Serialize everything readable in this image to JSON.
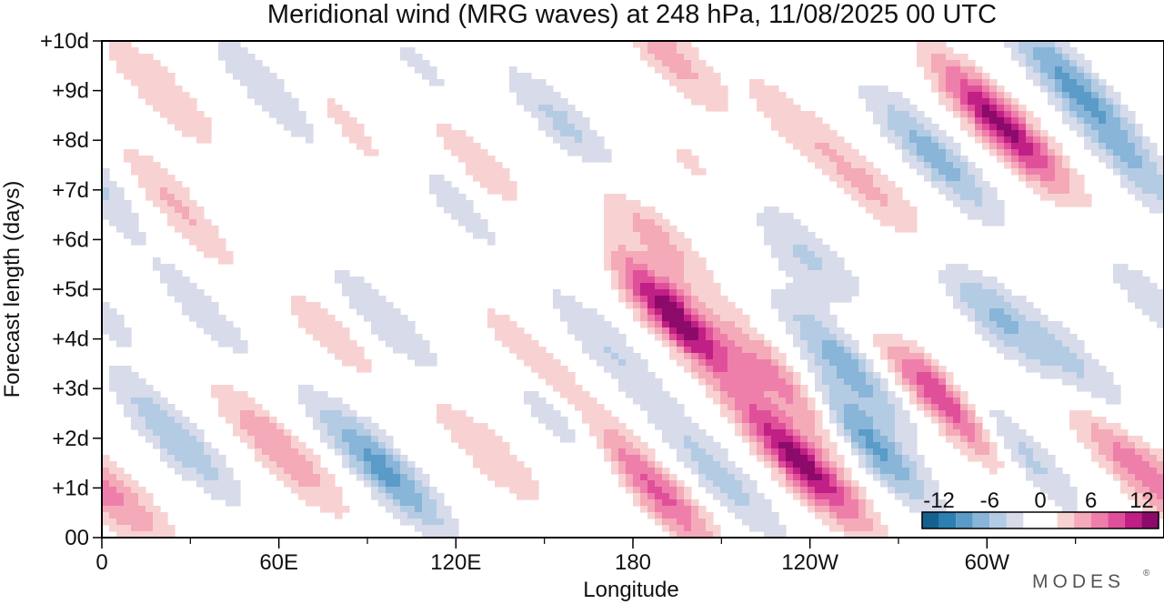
{
  "chart_data": {
    "type": "heatmap",
    "title": "Meridional wind (MRG waves) at  248 hPa,  11/08/2025  00 UTC",
    "xlabel": "Longitude",
    "ylabel": "Forecast length (days)",
    "x_ticks": [
      "0",
      "60E",
      "120E",
      "180",
      "120W",
      "60W"
    ],
    "x_tick_values": [
      0,
      60,
      120,
      180,
      240,
      300
    ],
    "x_range": [
      0,
      360
    ],
    "y_ticks": [
      "00",
      "+1d",
      "+2d",
      "+3d",
      "+4d",
      "+5d",
      "+6d",
      "+7d",
      "+8d",
      "+9d",
      "+10d"
    ],
    "y_tick_values": [
      0,
      1,
      2,
      3,
      4,
      5,
      6,
      7,
      8,
      9,
      10
    ],
    "y_range": [
      0,
      10
    ],
    "colorbar": {
      "labels": [
        "-12",
        "-6",
        "0",
        "6",
        "12"
      ],
      "label_values": [
        -12,
        -6,
        0,
        6,
        12
      ],
      "range": [
        -14,
        14
      ],
      "levels": [
        -14,
        -12,
        -10,
        -8,
        -6,
        -4,
        -2,
        2,
        4,
        6,
        8,
        10,
        12,
        14
      ],
      "colors": [
        "#0a3a5a",
        "#14618f",
        "#2c7fb1",
        "#5a9bc8",
        "#88b5d8",
        "#b4cbe4",
        "#d7dbea",
        "#ffffff",
        "#f8d2d2",
        "#f4aab8",
        "#ee7fab",
        "#e0509a",
        "#c01f85",
        "#8c0b6a",
        "#4a0038"
      ]
    },
    "features": [
      {
        "lon": 8,
        "day": 0.8,
        "value": 4
      },
      {
        "lon": 25,
        "day": 2.0,
        "value": -6
      },
      {
        "lon": 28,
        "day": 6.6,
        "value": 5
      },
      {
        "lon": 20,
        "day": 9.0,
        "value": 4
      },
      {
        "lon": 35,
        "day": 4.5,
        "value": -3
      },
      {
        "lon": 50,
        "day": 5.8,
        "value": -3
      },
      {
        "lon": 57,
        "day": 9.0,
        "value": -4
      },
      {
        "lon": 60,
        "day": 1.8,
        "value": 6
      },
      {
        "lon": 73,
        "day": 4.4,
        "value": 4
      },
      {
        "lon": 95,
        "day": 1.4,
        "value": -9
      },
      {
        "lon": 97,
        "day": 4.3,
        "value": -4
      },
      {
        "lon": 85,
        "day": 8.2,
        "value": 3
      },
      {
        "lon": 118,
        "day": 6.8,
        "value": -3
      },
      {
        "lon": 112,
        "day": 9.2,
        "value": -3
      },
      {
        "lon": 128,
        "day": 7.6,
        "value": 4
      },
      {
        "lon": 140,
        "day": 8.0,
        "value": 2
      },
      {
        "lon": 130,
        "day": 1.8,
        "value": 4
      },
      {
        "lon": 148,
        "day": 3.4,
        "value": 5
      },
      {
        "lon": 155,
        "day": 2.5,
        "value": -5
      },
      {
        "lon": 158,
        "day": 8.2,
        "value": -5
      },
      {
        "lon": 163,
        "day": 6.0,
        "value": -3
      },
      {
        "lon": 172,
        "day": 3.8,
        "value": -4
      },
      {
        "lon": 187,
        "day": 1.0,
        "value": 9
      },
      {
        "lon": 193,
        "day": 4.5,
        "value": 14
      },
      {
        "lon": 186,
        "day": 6.2,
        "value": 5
      },
      {
        "lon": 191,
        "day": 9.8,
        "value": 5
      },
      {
        "lon": 210,
        "day": 1.2,
        "value": -5
      },
      {
        "lon": 206,
        "day": 7.2,
        "value": 3
      },
      {
        "lon": 228,
        "day": 6.0,
        "value": -3
      },
      {
        "lon": 237,
        "day": 1.5,
        "value": 13
      },
      {
        "lon": 234,
        "day": 3.0,
        "value": 8
      },
      {
        "lon": 235,
        "day": 8.3,
        "value": 3
      },
      {
        "lon": 245,
        "day": 5.5,
        "value": -3
      },
      {
        "lon": 258,
        "day": 2.0,
        "value": -10
      },
      {
        "lon": 252,
        "day": 3.5,
        "value": -7
      },
      {
        "lon": 265,
        "day": 6.8,
        "value": 4
      },
      {
        "lon": 282,
        "day": 7.7,
        "value": -7
      },
      {
        "lon": 287,
        "day": 2.7,
        "value": 12
      },
      {
        "lon": 302,
        "day": 4.5,
        "value": -6
      },
      {
        "lon": 307,
        "day": 1.9,
        "value": -7
      },
      {
        "lon": 305,
        "day": 8.3,
        "value": 13
      },
      {
        "lon": 328,
        "day": 9.2,
        "value": -8
      },
      {
        "lon": 330,
        "day": 3.5,
        "value": -4
      },
      {
        "lon": 348,
        "day": 1.5,
        "value": 6
      },
      {
        "lon": 350,
        "day": 7.5,
        "value": -5
      },
      {
        "lon": 355,
        "day": 4.8,
        "value": -3
      }
    ]
  },
  "logo": {
    "text": "MODES"
  }
}
